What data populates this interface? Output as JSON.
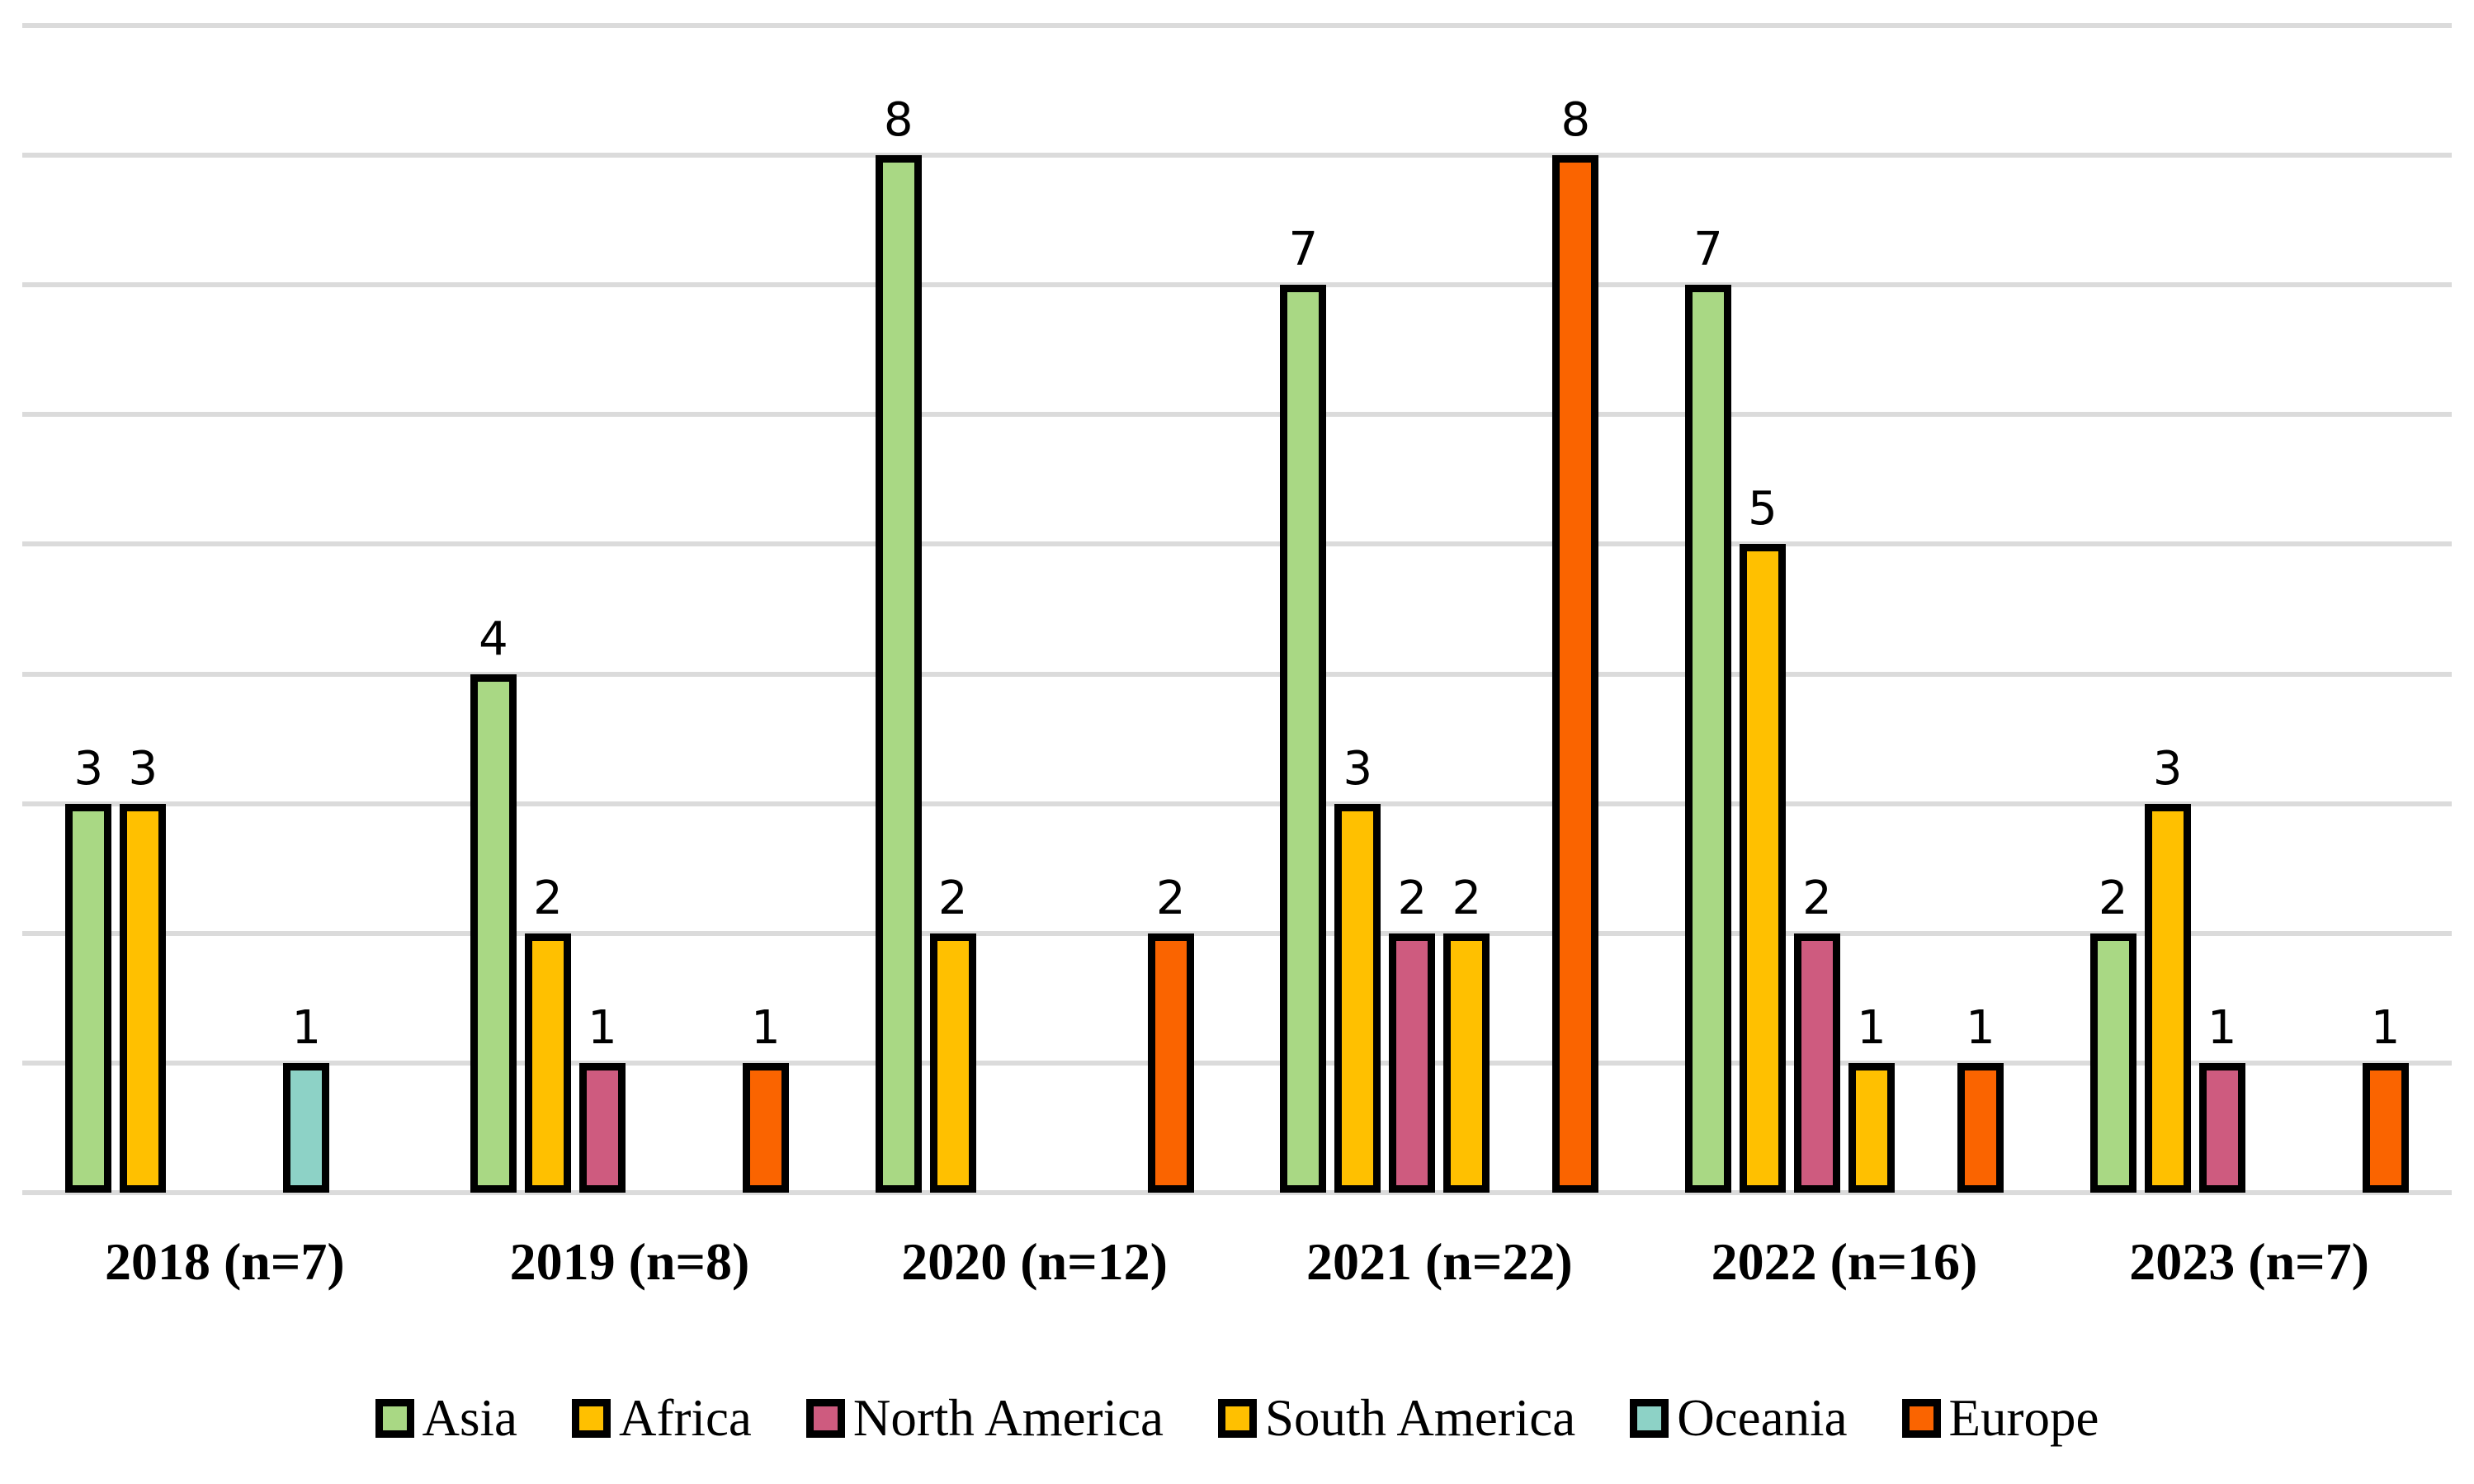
{
  "figure": {
    "background_color": "#FFFFFF",
    "gridline_color": "#DBDBDB",
    "bar_outline_color": "#000000",
    "text_color": "#000000"
  },
  "chart_data": {
    "type": "bar",
    "title": "",
    "xlabel": "",
    "ylabel": "",
    "categories": [
      "2018 (n=7)",
      "2019 (n=8)",
      "2020 (n=12)",
      "2021 (n=22)",
      "2022 (n=16)",
      "2023 (n=7)"
    ],
    "series": [
      {
        "name": "Asia",
        "color": "#A9D884",
        "values": [
          3,
          4,
          8,
          7,
          7,
          2
        ]
      },
      {
        "name": "Africa",
        "color": "#FFC000",
        "values": [
          3,
          2,
          2,
          3,
          5,
          3
        ]
      },
      {
        "name": "North America",
        "color": "#CE5B7F",
        "values": [
          0,
          1,
          0,
          2,
          2,
          1
        ]
      },
      {
        "name": "South America",
        "color": "#FFC000",
        "values": [
          0,
          0,
          0,
          2,
          1,
          0
        ]
      },
      {
        "name": "Oceania",
        "color": "#8DD2C6",
        "values": [
          1,
          0,
          0,
          0,
          0,
          0
        ]
      },
      {
        "name": "Europe",
        "color": "#FA6400",
        "values": [
          0,
          1,
          2,
          8,
          1,
          1
        ]
      }
    ],
    "ylim": [
      0,
      9
    ],
    "grid": true,
    "gridline_step": 1,
    "y_axis_labels_shown": false,
    "value_labels": "above bars, zero values hidden",
    "legend_position": "bottom"
  }
}
